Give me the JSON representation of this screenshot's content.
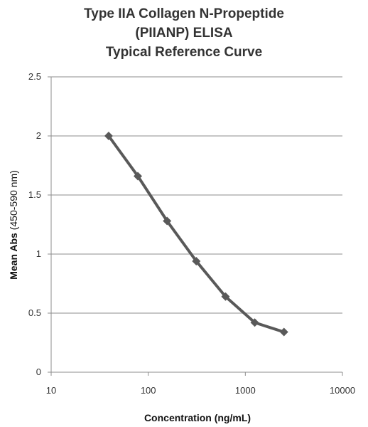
{
  "chart_data": {
    "type": "line",
    "title_lines": [
      "Type IIA Collagen N-Propeptide",
      "(PIIANP) ELISA",
      "Typical Reference Curve"
    ],
    "xlabel": "Concentration (ng/mL)",
    "ylabel_bold": "Mean Abs",
    "ylabel_rest": " (450-590 nm)",
    "x_scale": "log",
    "xlim": [
      10,
      10000
    ],
    "ylim": [
      0,
      2.5
    ],
    "x_ticks": [
      "10",
      "100",
      "1000",
      "10000"
    ],
    "x_tick_values": [
      10,
      100,
      1000,
      10000
    ],
    "y_ticks": [
      "0",
      "0.5",
      "1",
      "1.5",
      "2",
      "2.5"
    ],
    "y_tick_values": [
      0,
      0.5,
      1,
      1.5,
      2,
      2.5
    ],
    "grid": "horizontal",
    "legend": "none",
    "series": [
      {
        "x": [
          39.1,
          78.1,
          156.3,
          312.5,
          625,
          1250,
          2500
        ],
        "y": [
          2.0,
          1.66,
          1.28,
          0.94,
          0.64,
          0.42,
          0.34
        ],
        "color": "#595959",
        "marker": "diamond"
      }
    ]
  }
}
